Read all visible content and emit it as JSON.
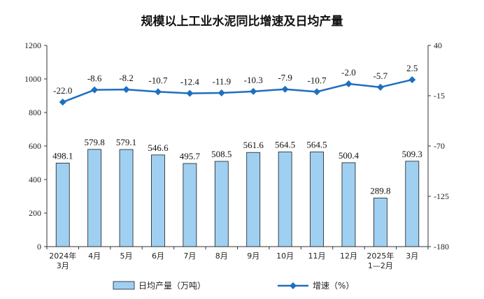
{
  "chart_data": {
    "type": "bar+line",
    "title": "规模以上工业水泥同比增速及日均产量",
    "categories": [
      [
        "2024年",
        "3月"
      ],
      [
        "4月"
      ],
      [
        "5月"
      ],
      [
        "6月"
      ],
      [
        "7月"
      ],
      [
        "8月"
      ],
      [
        "9月"
      ],
      [
        "10月"
      ],
      [
        "11月"
      ],
      [
        "12月"
      ],
      [
        "2025年",
        "1—2月"
      ],
      [
        "3月"
      ]
    ],
    "series": [
      {
        "name": "日均产量（万吨）",
        "type": "bar",
        "axis": "left",
        "values": [
          498.1,
          579.8,
          579.1,
          546.6,
          495.7,
          508.5,
          561.6,
          564.5,
          564.5,
          500.4,
          289.8,
          509.3
        ],
        "labels": [
          "498.1",
          "579.8",
          "579.1",
          "546.6",
          "495.7",
          "508.5",
          "561.6",
          "564.5",
          "564.5",
          "500.4",
          "289.8",
          "509.3"
        ]
      },
      {
        "name": "增速（%）",
        "type": "line",
        "axis": "right",
        "values": [
          -22.0,
          -8.6,
          -8.2,
          -10.7,
          -12.4,
          -11.9,
          -10.3,
          -7.9,
          -10.7,
          -2.0,
          -5.7,
          2.5
        ],
        "labels": [
          "-22.0",
          "-8.6",
          "-8.2",
          "-10.7",
          "-12.4",
          "-11.9",
          "-10.3",
          "-7.9",
          "-10.7",
          "-2.0",
          "-5.7",
          "2.5"
        ]
      }
    ],
    "y_left": {
      "min": 0,
      "max": 1200,
      "ticks": [
        "0",
        "200",
        "400",
        "600",
        "800",
        "1000",
        "1200"
      ]
    },
    "y_right": {
      "min": -180,
      "max": 40,
      "ticks": [
        "40",
        "-15",
        "-70",
        "-125",
        "-180"
      ]
    },
    "grid": false,
    "legend_position": "bottom",
    "colors": {
      "bar_fill": "#9fd0f2",
      "bar_stroke": "#1a1a1a",
      "line": "#1f6fbf",
      "axis": "#333333"
    }
  }
}
